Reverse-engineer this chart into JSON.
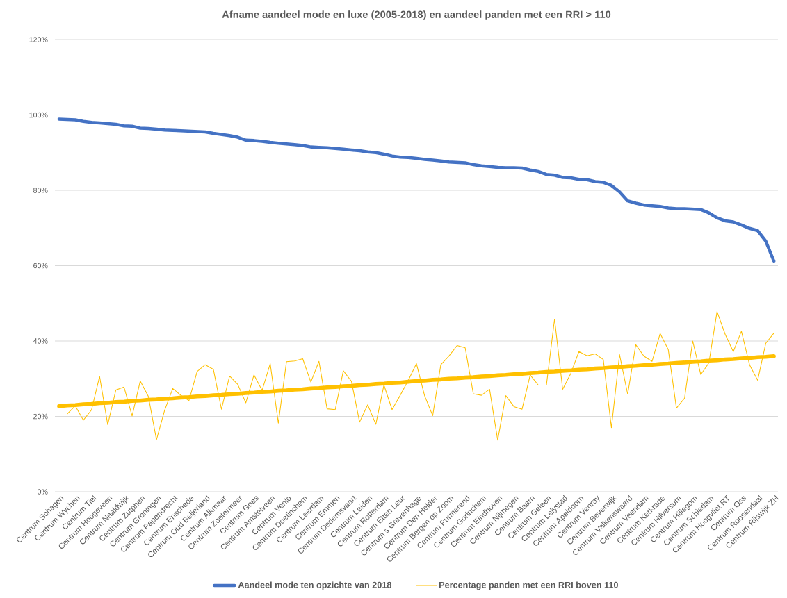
{
  "chart_data": {
    "type": "line",
    "title": "Afname aandeel mode en luxe (2005-2018) en aandeel panden met een RRI > 110",
    "categories": [
      "Centrum Schagen",
      null,
      "Centrum Wychen",
      null,
      "Centrum Tiel",
      null,
      "Centrum Hoogeveen",
      null,
      "Centrum Naaldwijk",
      null,
      "Centrum Zutphen",
      null,
      "Centrum Groningen",
      null,
      "Centrum Papendrecht",
      null,
      "Centrum Enschede",
      null,
      "Centrum Oud Beijerland",
      null,
      "Centrum Alkmaar",
      null,
      "Centrum Zoetermeer",
      null,
      "Centrum Goes",
      null,
      "Centrum Amstelveen",
      null,
      "Centrum Venlo",
      null,
      "Centrum Doetinchem",
      null,
      "Centrum Leerdam",
      null,
      "Centrum Emmen",
      null,
      "Centrum Dedemsvaart",
      null,
      "Centrum Leiden",
      null,
      "Centrum Rotterdam",
      null,
      "Centrum Etten Leur",
      null,
      "Centrum s Gravenhage",
      null,
      "Centrum Den Helder",
      null,
      "Centrum Bergen op Zoom",
      null,
      "Centrum Purmerend",
      null,
      "Centrum Gorinchem",
      null,
      "Centrum Eindhoven",
      null,
      "Centrum Nijmegen",
      null,
      "Centrum Baarn",
      null,
      "Centrum Geleen",
      null,
      "Centrum Lelystad",
      null,
      "Centrum Apeldoorn",
      null,
      "Centrum Venray",
      null,
      "Centrum Beverwijk",
      null,
      "Centrum Valkenswaard",
      null,
      "Centrum Veendam",
      null,
      "Centrum Kerkrade",
      null,
      "Centrum Hilversum",
      null,
      "Centrum Hillegom",
      null,
      "Centrum Schiedam",
      null,
      "Centrum Hoogvliet RT",
      null,
      "Centrum Oss",
      null,
      "Centrum Roosendaal",
      null,
      "Centrum Rijswijk ZH"
    ],
    "series": [
      {
        "name": "Aandeel mode ten opzichte van 2018",
        "color": "#4472c4",
        "values": [
          98.9,
          98.8,
          98.7,
          98.3,
          98.0,
          97.9,
          97.7,
          97.5,
          97.1,
          97.0,
          96.5,
          96.4,
          96.2,
          96.0,
          95.9,
          95.8,
          95.7,
          95.6,
          95.5,
          95.1,
          94.8,
          94.5,
          94.1,
          93.3,
          93.2,
          93.0,
          92.7,
          92.5,
          92.3,
          92.1,
          91.9,
          91.5,
          91.4,
          91.3,
          91.1,
          90.9,
          90.7,
          90.5,
          90.2,
          90.0,
          89.6,
          89.1,
          88.8,
          88.7,
          88.5,
          88.2,
          88.0,
          87.8,
          87.5,
          87.4,
          87.3,
          86.8,
          86.5,
          86.3,
          86.1,
          86.0,
          86.0,
          85.9,
          85.4,
          85.0,
          84.2,
          84.0,
          83.4,
          83.3,
          82.9,
          82.8,
          82.3,
          82.1,
          81.3,
          79.6,
          77.2,
          76.6,
          76.1,
          75.9,
          75.7,
          75.3,
          75.1,
          75.1,
          75.0,
          74.9,
          74.0,
          72.7,
          71.9,
          71.6,
          70.8,
          69.9,
          69.3,
          66.5,
          61.2
        ]
      },
      {
        "name": "Percentage panden met een RRI boven 110",
        "color": "#ffc000",
        "values": [
          null,
          20.6,
          22.8,
          19.0,
          21.7,
          30.6,
          17.8,
          27.0,
          27.8,
          20.1,
          29.4,
          25.3,
          13.8,
          21.6,
          27.4,
          25.6,
          24.2,
          31.9,
          33.7,
          32.5,
          21.9,
          30.7,
          28.5,
          23.6,
          31.0,
          26.9,
          34.0,
          18.2,
          34.5,
          34.7,
          35.3,
          29.1,
          34.6,
          22.0,
          21.8,
          32.1,
          29.3,
          18.5,
          23.1,
          17.9,
          28.3,
          21.8,
          25.6,
          29.6,
          34.0,
          25.5,
          20.2,
          33.7,
          36.0,
          38.8,
          38.2,
          26.0,
          25.6,
          27.2,
          13.7,
          25.5,
          22.6,
          21.9,
          31.0,
          28.3,
          28.3,
          45.8,
          27.2,
          31.4,
          37.2,
          36.1,
          36.6,
          35.1,
          17.0,
          36.4,
          25.9,
          39.0,
          36.0,
          34.6,
          42.0,
          37.7,
          22.2,
          24.8,
          40.0,
          31.1,
          34.2,
          47.8,
          41.8,
          37.2,
          42.6,
          33.7,
          29.6,
          39.4,
          42.1
        ]
      },
      {
        "type": "line",
        "color": "#ffc000",
        "values": [
          22.7,
          22.9,
          23.0,
          23.2,
          23.3,
          23.5,
          23.6,
          23.8,
          23.9,
          24.1,
          24.2,
          24.4,
          24.5,
          24.7,
          24.8,
          25.0,
          25.1,
          25.3,
          25.4,
          25.6,
          25.7,
          25.9,
          26.0,
          26.2,
          26.3,
          26.5,
          26.6,
          26.8,
          26.9,
          27.1,
          27.2,
          27.4,
          27.5,
          27.7,
          27.8,
          28.0,
          28.1,
          28.3,
          28.4,
          28.6,
          28.7,
          28.9,
          29.0,
          29.2,
          29.4,
          29.5,
          29.7,
          29.8,
          30.0,
          30.1,
          30.3,
          30.4,
          30.6,
          30.7,
          30.9,
          31.0,
          31.2,
          31.3,
          31.5,
          31.6,
          31.8,
          31.9,
          32.1,
          32.2,
          32.4,
          32.5,
          32.7,
          32.8,
          33.0,
          33.1,
          33.3,
          33.4,
          33.6,
          33.7,
          33.9,
          34.0,
          34.2,
          34.3,
          34.5,
          34.6,
          34.8,
          34.9,
          35.1,
          35.2,
          35.4,
          35.5,
          35.7,
          35.8,
          36.0
        ]
      }
    ],
    "ylim": [
      0,
      120
    ],
    "yticks": [
      {
        "value": 0,
        "label": "0%"
      },
      {
        "value": 20,
        "label": "20%"
      },
      {
        "value": 40,
        "label": "40%"
      },
      {
        "value": 60,
        "label": "60%"
      },
      {
        "value": 80,
        "label": "80%"
      },
      {
        "value": 100,
        "label": "100%"
      },
      {
        "value": 120,
        "label": "120%"
      }
    ],
    "grid": "y",
    "legend": "bottom",
    "marker": "none"
  }
}
